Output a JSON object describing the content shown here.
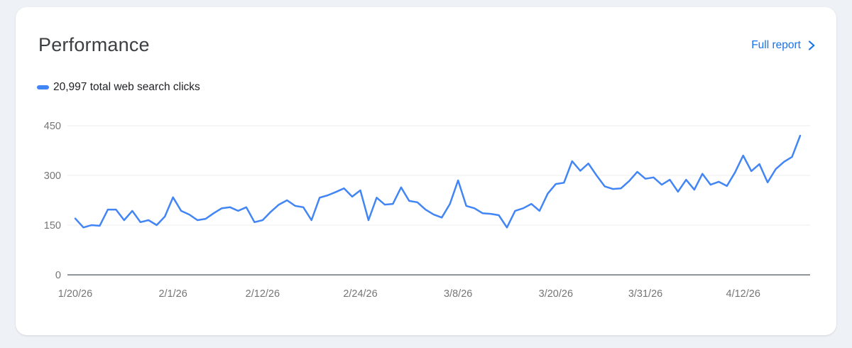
{
  "card": {
    "title": "Performance",
    "full_report_label": "Full report",
    "legend_label": "20,997 total web search clicks"
  },
  "chart_data": {
    "type": "line",
    "title": "",
    "legend": [
      "total web search clicks"
    ],
    "legend_position": "top-left",
    "grid": true,
    "x": {
      "unit": "day",
      "start_date": "1/20/26",
      "end_date": "4/19/26",
      "tick_labels": [
        "1/20/26",
        "2/1/26",
        "2/12/26",
        "2/24/26",
        "3/8/26",
        "3/20/26",
        "3/31/26",
        "4/12/26"
      ],
      "tick_day_indices": [
        0,
        12,
        23,
        35,
        47,
        59,
        70,
        82
      ]
    },
    "y": {
      "ticks": [
        450,
        300,
        150,
        0
      ],
      "lim": [
        0,
        450
      ]
    },
    "series": [
      {
        "name": "total web search clicks",
        "color": "#4285f4",
        "total": 20997,
        "values": [
          170,
          143,
          150,
          148,
          197,
          197,
          165,
          193,
          159,
          165,
          150,
          176,
          234,
          193,
          182,
          165,
          169,
          186,
          201,
          204,
          193,
          204,
          159,
          165,
          190,
          212,
          225,
          208,
          204,
          165,
          233,
          240,
          250,
          261,
          236,
          255,
          165,
          233,
          212,
          214,
          264,
          223,
          219,
          197,
          182,
          173,
          214,
          285,
          208,
          201,
          186,
          184,
          180,
          143,
          193,
          201,
          214,
          193,
          245,
          274,
          278,
          343,
          314,
          336,
          300,
          267,
          259,
          261,
          283,
          311,
          290,
          294,
          272,
          287,
          251,
          287,
          257,
          305,
          272,
          281,
          268,
          309,
          360,
          313,
          334,
          279,
          319,
          341,
          356,
          420
        ]
      }
    ]
  },
  "colors": {
    "accent_link": "#1a73e8",
    "series_line": "#4285f4",
    "legend_dash": "#4285f4",
    "title_text": "#3c4043",
    "legend_text": "#202124",
    "axis_tick_text": "#757575",
    "gridline": "#ececec",
    "zero_axis": "#80868b",
    "page_background": "#eef1f6",
    "card_background": "#ffffff"
  }
}
